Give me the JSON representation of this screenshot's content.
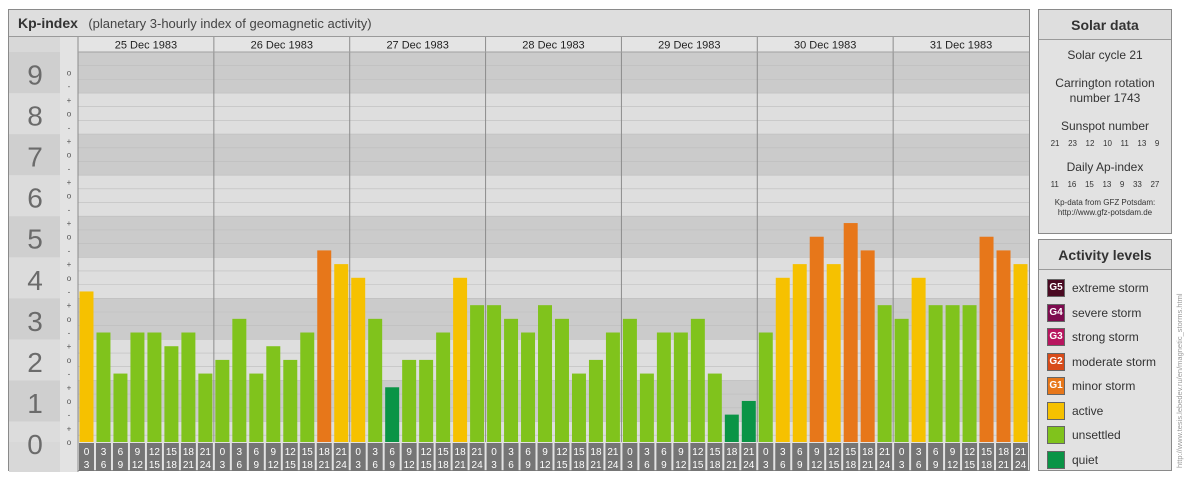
{
  "header": {
    "title": "Kp-index",
    "subtitle": "(planetary 3-hourly index of geomagnetic activity)"
  },
  "chart_data": {
    "type": "bar",
    "title": "Kp-index",
    "subtitle": "(planetary 3-hourly index of geomagnetic activity)",
    "y_range": [
      0,
      9
    ],
    "y_ticks": [
      "0",
      "1",
      "2",
      "3",
      "4",
      "5",
      "6",
      "7",
      "8",
      "9"
    ],
    "y_minor_ticks": [
      "+",
      "o",
      "-"
    ],
    "days": [
      "25 Dec 1983",
      "26 Dec 1983",
      "27 Dec 1983",
      "28 Dec 1983",
      "29 Dec 1983",
      "30 Dec 1983",
      "31 Dec 1983"
    ],
    "x_tick_labels": [
      {
        "top": "0",
        "bottom": "3"
      },
      {
        "top": "3",
        "bottom": "6"
      },
      {
        "top": "6",
        "bottom": "9"
      },
      {
        "top": "9",
        "bottom": "12"
      },
      {
        "top": "12",
        "bottom": "15"
      },
      {
        "top": "15",
        "bottom": "18"
      },
      {
        "top": "18",
        "bottom": "21"
      },
      {
        "top": "21",
        "bottom": "24"
      }
    ],
    "values": [
      3.667,
      2.667,
      1.667,
      2.667,
      2.667,
      2.333,
      2.667,
      1.667,
      2.0,
      3.0,
      1.667,
      2.333,
      2.0,
      2.667,
      4.667,
      4.333,
      4.0,
      3.0,
      1.333,
      2.0,
      2.0,
      2.667,
      4.0,
      3.333,
      3.333,
      3.0,
      2.667,
      3.333,
      3.0,
      1.667,
      2.0,
      2.667,
      3.0,
      1.667,
      2.667,
      2.667,
      3.0,
      1.667,
      0.667,
      1.0,
      2.667,
      4.0,
      4.333,
      5.0,
      4.333,
      5.333,
      4.667,
      3.333,
      3.0,
      4.0,
      3.333,
      3.333,
      3.333,
      5.0,
      4.667,
      4.333
    ],
    "levels": [
      {
        "min": 0,
        "max": 1.5,
        "color": "#0a9446"
      },
      {
        "min": 1.5,
        "max": 3.5,
        "color": "#80c31c"
      },
      {
        "min": 3.5,
        "max": 4.5,
        "color": "#f6c100"
      },
      {
        "min": 4.5,
        "max": 9.5,
        "color": "#e7771a"
      }
    ]
  },
  "solar": {
    "title": "Solar data",
    "cycle": "Solar cycle 21",
    "carrington_line1": "Carrington rotation",
    "carrington_line2": "number 1743",
    "sunspot_label": "Sunspot number",
    "sunspot_numbers": [
      "21",
      "23",
      "12",
      "10",
      "11",
      "13",
      "9"
    ],
    "ap_label": "Daily Ap-index",
    "ap_values": [
      "11",
      "16",
      "15",
      "13",
      "9",
      "33",
      "27"
    ],
    "source_line1": "Kp-data from GFZ Potsdam:",
    "source_line2": "http://www.gfz-potsdam.de"
  },
  "activity": {
    "title": "Activity levels",
    "items": [
      {
        "code": "G5",
        "label": "extreme storm",
        "color": "#4a0a22"
      },
      {
        "code": "G4",
        "label": "severe storm",
        "color": "#7d0c4f"
      },
      {
        "code": "G3",
        "label": "strong storm",
        "color": "#b8155f"
      },
      {
        "code": "G2",
        "label": "moderate storm",
        "color": "#d84b1a"
      },
      {
        "code": "G1",
        "label": "minor storm",
        "color": "#e7771a"
      },
      {
        "code": "",
        "label": "active",
        "color": "#f6c100"
      },
      {
        "code": "",
        "label": "unsettled",
        "color": "#80c31c"
      },
      {
        "code": "",
        "label": "quiet",
        "color": "#0a9446"
      }
    ]
  },
  "credit": "http://www.tesis.lebedev.ru/en/magnetic_storms.html"
}
